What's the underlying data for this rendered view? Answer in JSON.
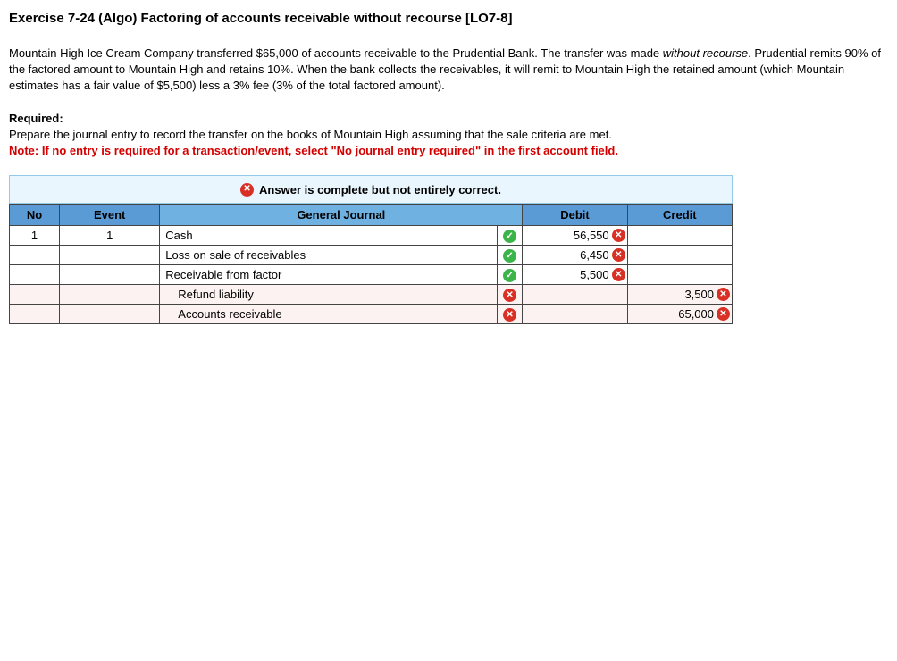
{
  "title": "Exercise 7-24 (Algo) Factoring of accounts receivable without recourse [LO7-8]",
  "problem": {
    "p1a": "Mountain High Ice Cream Company transferred $65,000 of accounts receivable to the Prudential Bank. The transfer was made ",
    "p1b": "without recourse",
    "p1c": ". Prudential remits 90% of the factored amount to Mountain High and retains 10%. When the bank collects the receivables, it will remit to Mountain High the retained amount (which Mountain estimates has a fair value of $5,500) less a 3% fee (3% of the total factored amount).",
    "required_label": "Required:",
    "required_text": "Prepare the journal entry to record the transfer on the books of Mountain High assuming that the sale criteria are met.",
    "note": "Note: If no entry is required for a transaction/event, select \"No journal entry required\" in the first account field."
  },
  "banner": "Answer is complete but not entirely correct.",
  "headers": {
    "no": "No",
    "event": "Event",
    "gj": "General Journal",
    "debit": "Debit",
    "credit": "Credit"
  },
  "rows": [
    {
      "no": "1",
      "event": "1",
      "account": "Cash",
      "indent": false,
      "acct_ok": true,
      "debit": "56,550",
      "debit_ok": false,
      "credit": "",
      "credit_ok": null,
      "row_wrong": false
    },
    {
      "no": "",
      "event": "",
      "account": "Loss on sale of receivables",
      "indent": false,
      "acct_ok": true,
      "debit": "6,450",
      "debit_ok": false,
      "credit": "",
      "credit_ok": null,
      "row_wrong": false
    },
    {
      "no": "",
      "event": "",
      "account": "Receivable from factor",
      "indent": false,
      "acct_ok": true,
      "debit": "5,500",
      "debit_ok": false,
      "credit": "",
      "credit_ok": null,
      "row_wrong": false
    },
    {
      "no": "",
      "event": "",
      "account": "Refund liability",
      "indent": true,
      "acct_ok": false,
      "debit": "",
      "debit_ok": null,
      "credit": "3,500",
      "credit_ok": false,
      "row_wrong": true
    },
    {
      "no": "",
      "event": "",
      "account": "Accounts receivable",
      "indent": true,
      "acct_ok": false,
      "debit": "",
      "debit_ok": null,
      "credit": "65,000",
      "credit_ok": false,
      "row_wrong": true
    }
  ],
  "icons": {
    "check": "✓",
    "x": "✕"
  },
  "colors": {
    "banner_bg": "#eaf6fd",
    "banner_border": "#94c9e8",
    "header_bg": "#5b9bd5",
    "note_color": "#d40000",
    "check_bg": "#3bb54a",
    "x_bg": "#d93025",
    "wrong_row_bg": "#fdf2f2"
  }
}
